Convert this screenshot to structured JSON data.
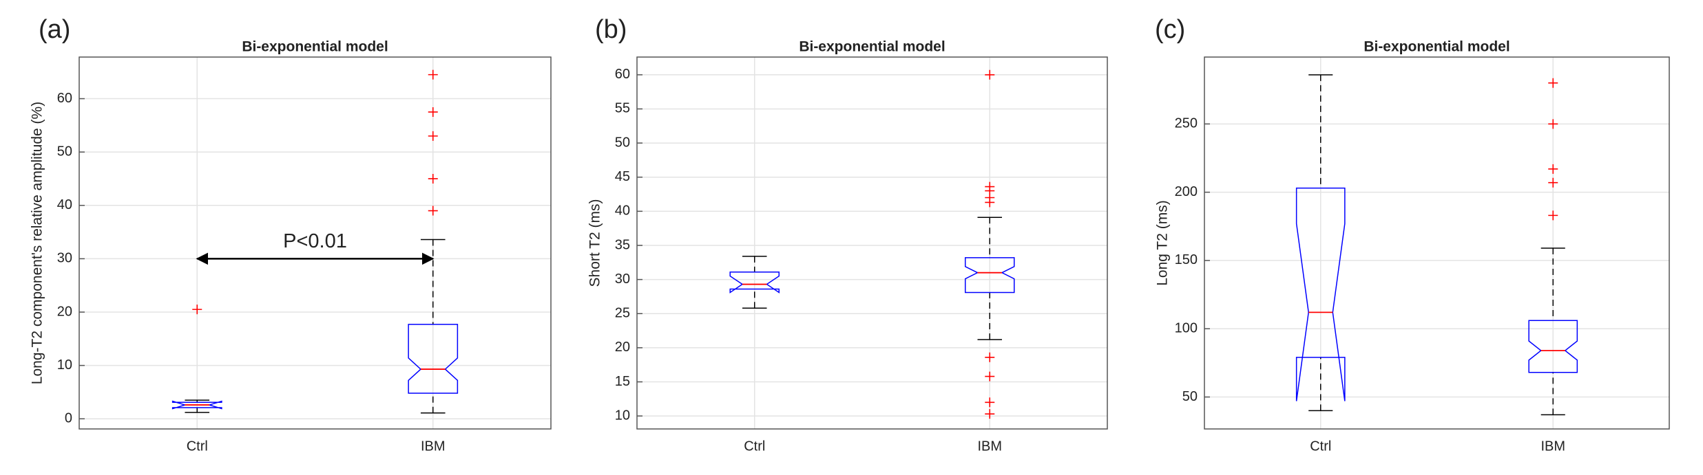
{
  "chart_data": [
    {
      "type": "box",
      "panel_label": "(a)",
      "title": "Bi-exponential model",
      "y_label": "Long-T2 component's relative amplitude (%)",
      "categories": [
        "Ctrl",
        "IBM"
      ],
      "ylim": [
        -1.9,
        67.8
      ],
      "yticks": [
        0,
        10,
        20,
        30,
        40,
        50,
        60
      ],
      "grid": true,
      "box_color": "#0000ff",
      "median_color": "#ff0000",
      "whisker_color": "#000000",
      "outlier_color": "#ff0000",
      "boxes": [
        {
          "whisker_low": 1.2,
          "q1": 2.1,
          "notch_low": 1.9,
          "median": 2.6,
          "notch_high": 3.3,
          "q3": 3.1,
          "whisker_high": 3.5,
          "outliers": [
            20.5
          ]
        },
        {
          "whisker_low": 1.1,
          "q1": 4.8,
          "notch_low": 7.2,
          "median": 9.3,
          "notch_high": 11.4,
          "q3": 17.7,
          "whisker_high": 33.6,
          "outliers": [
            39,
            45,
            53,
            57.5,
            64.5
          ]
        }
      ],
      "annotation": {
        "text": "P<0.01",
        "y": 30
      }
    },
    {
      "type": "box",
      "panel_label": "(b)",
      "title": "Bi-exponential model",
      "y_label": "Short T2 (ms)",
      "categories": [
        "Ctrl",
        "IBM"
      ],
      "ylim": [
        8.1,
        62.6
      ],
      "yticks": [
        10,
        15,
        20,
        25,
        30,
        35,
        40,
        45,
        50,
        55,
        60
      ],
      "grid": true,
      "box_color": "#0000ff",
      "median_color": "#ff0000",
      "whisker_color": "#000000",
      "outlier_color": "#ff0000",
      "boxes": [
        {
          "whisker_low": 25.8,
          "q1": 28.6,
          "notch_low": 28.1,
          "median": 29.3,
          "notch_high": 30.5,
          "q3": 31.1,
          "whisker_high": 33.4,
          "outliers": []
        },
        {
          "whisker_low": 21.2,
          "q1": 28.1,
          "notch_low": 30.1,
          "median": 31.0,
          "notch_high": 31.9,
          "q3": 33.2,
          "whisker_high": 39.1,
          "outliers": [
            41.3,
            42.0,
            43.0,
            43.6,
            60.0,
            18.6,
            15.8,
            12.0,
            10.3
          ]
        }
      ]
    },
    {
      "type": "box",
      "panel_label": "(c)",
      "title": "Bi-exponential model",
      "y_label": "Long T2 (ms)",
      "categories": [
        "Ctrl",
        "IBM"
      ],
      "ylim": [
        26.6,
        299
      ],
      "yticks": [
        50,
        100,
        150,
        200,
        250
      ],
      "grid": true,
      "box_color": "#0000ff",
      "median_color": "#ff0000",
      "whisker_color": "#000000",
      "outlier_color": "#ff0000",
      "boxes": [
        {
          "whisker_low": 40,
          "q1": 79,
          "notch_low": 47,
          "median": 112,
          "notch_high": 177,
          "q3": 203,
          "whisker_high": 286,
          "outliers": []
        },
        {
          "whisker_low": 37,
          "q1": 68,
          "notch_low": 77,
          "median": 84,
          "notch_high": 91,
          "q3": 106,
          "whisker_high": 159,
          "outliers": [
            183,
            207,
            217,
            250,
            280
          ]
        }
      ]
    }
  ]
}
